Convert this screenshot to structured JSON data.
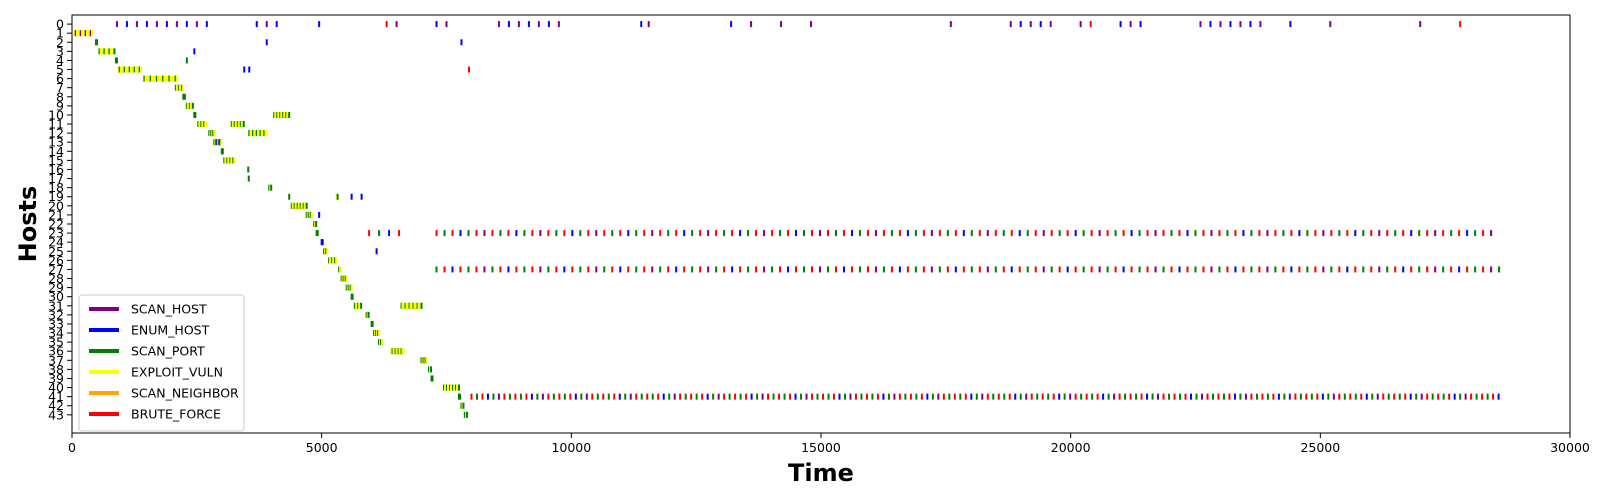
{
  "chart_data": {
    "type": "scatter",
    "xlabel": "Time",
    "ylabel": "Hosts",
    "xlim": [
      0,
      30000
    ],
    "ylim": [
      -1,
      45
    ],
    "y_inverted": true,
    "x_ticks": [
      0,
      5000,
      10000,
      15000,
      20000,
      25000,
      30000
    ],
    "y_ticks": [
      0,
      1,
      2,
      3,
      4,
      5,
      6,
      7,
      8,
      9,
      10,
      11,
      12,
      13,
      14,
      15,
      16,
      17,
      18,
      19,
      20,
      21,
      22,
      23,
      24,
      25,
      26,
      27,
      28,
      29,
      30,
      31,
      32,
      33,
      34,
      35,
      36,
      37,
      38,
      39,
      40,
      41,
      42,
      43
    ],
    "grid": false,
    "legend_position": "bottom-left",
    "actions": [
      {
        "name": "SCAN_HOST",
        "color": "#800080"
      },
      {
        "name": "ENUM_HOST",
        "color": "#0000ff"
      },
      {
        "name": "SCAN_PORT",
        "color": "#008000"
      },
      {
        "name": "EXPLOIT_VULN",
        "color": "#ffff00"
      },
      {
        "name": "SCAN_NEIGHBOR",
        "color": "#ffa500"
      },
      {
        "name": "BRUTE_FORCE",
        "color": "#ff0000"
      }
    ],
    "points": [
      {
        "host": 0,
        "t_start": 900,
        "t_end": 2800,
        "step": 200,
        "actions": [
          "SCAN_HOST",
          "ENUM_HOST"
        ]
      },
      {
        "host": 0,
        "t_start": 3700,
        "t_end": 4200,
        "step": 200,
        "actions": [
          "ENUM_HOST",
          "SCAN_HOST"
        ]
      },
      {
        "host": 0,
        "t_start": 4950,
        "t_end": 4950,
        "step": 200,
        "actions": [
          "ENUM_HOST"
        ]
      },
      {
        "host": 0,
        "t_start": 6300,
        "t_end": 6550,
        "step": 200,
        "actions": [
          "BRUTE_FORCE",
          "SCAN_HOST"
        ]
      },
      {
        "host": 0,
        "t_start": 7300,
        "t_end": 7500,
        "step": 200,
        "actions": [
          "ENUM_HOST",
          "SCAN_HOST"
        ]
      },
      {
        "host": 0,
        "t_start": 8550,
        "t_end": 9800,
        "step": 200,
        "actions": [
          "SCAN_HOST",
          "ENUM_HOST"
        ]
      },
      {
        "host": 0,
        "t_start": 11400,
        "t_end": 11550,
        "step": 150,
        "actions": [
          "ENUM_HOST",
          "SCAN_HOST"
        ]
      },
      {
        "host": 0,
        "t_start": 13200,
        "t_end": 13600,
        "step": 400,
        "actions": [
          "ENUM_HOST",
          "SCAN_HOST"
        ]
      },
      {
        "host": 0,
        "t_start": 14200,
        "t_end": 14800,
        "step": 600,
        "actions": [
          "SCAN_HOST"
        ]
      },
      {
        "host": 0,
        "t_start": 17600,
        "t_end": 17600,
        "step": 200,
        "actions": [
          "SCAN_HOST"
        ]
      },
      {
        "host": 0,
        "t_start": 18800,
        "t_end": 19600,
        "step": 200,
        "actions": [
          "SCAN_HOST",
          "ENUM_HOST"
        ]
      },
      {
        "host": 0,
        "t_start": 20200,
        "t_end": 20400,
        "step": 200,
        "actions": [
          "SCAN_HOST",
          "BRUTE_FORCE"
        ]
      },
      {
        "host": 0,
        "t_start": 21000,
        "t_end": 21400,
        "step": 200,
        "actions": [
          "ENUM_HOST",
          "SCAN_HOST"
        ]
      },
      {
        "host": 0,
        "t_start": 22600,
        "t_end": 23800,
        "step": 200,
        "actions": [
          "SCAN_HOST",
          "ENUM_HOST"
        ]
      },
      {
        "host": 0,
        "t_start": 24400,
        "t_end": 25200,
        "step": 800,
        "actions": [
          "ENUM_HOST",
          "SCAN_HOST"
        ]
      },
      {
        "host": 0,
        "t_start": 27000,
        "t_end": 27800,
        "step": 800,
        "actions": [
          "SCAN_HOST",
          "BRUTE_FORCE"
        ]
      },
      {
        "host": 1,
        "t_start": 50,
        "t_end": 420,
        "step": 25,
        "actions": [
          "EXPLOIT_VULN",
          "SCAN_HOST",
          "EXPLOIT_VULN",
          "EXPLOIT_VULN"
        ]
      },
      {
        "host": 2,
        "t_start": 480,
        "t_end": 500,
        "step": 20,
        "actions": [
          "SCAN_PORT"
        ]
      },
      {
        "host": 2,
        "t_start": 3900,
        "t_end": 3900,
        "step": 20,
        "actions": [
          "ENUM_HOST"
        ]
      },
      {
        "host": 2,
        "t_start": 7800,
        "t_end": 7800,
        "step": 20,
        "actions": [
          "ENUM_HOST"
        ]
      },
      {
        "host": 3,
        "t_start": 550,
        "t_end": 860,
        "step": 25,
        "actions": [
          "SCAN_PORT",
          "EXPLOIT_VULN",
          "EXPLOIT_VULN",
          "EXPLOIT_VULN"
        ]
      },
      {
        "host": 3,
        "t_start": 2450,
        "t_end": 2450,
        "step": 20,
        "actions": [
          "ENUM_HOST"
        ]
      },
      {
        "host": 4,
        "t_start": 880,
        "t_end": 900,
        "step": 20,
        "actions": [
          "SCAN_PORT"
        ]
      },
      {
        "host": 4,
        "t_start": 2300,
        "t_end": 2300,
        "step": 20,
        "actions": [
          "SCAN_PORT"
        ]
      },
      {
        "host": 5,
        "t_start": 930,
        "t_end": 1400,
        "step": 25,
        "actions": [
          "EXPLOIT_VULN",
          "SCAN_PORT",
          "EXPLOIT_VULN",
          "EXPLOIT_VULN"
        ]
      },
      {
        "host": 5,
        "t_start": 3450,
        "t_end": 3550,
        "step": 100,
        "actions": [
          "ENUM_HOST"
        ]
      },
      {
        "host": 5,
        "t_start": 7950,
        "t_end": 7950,
        "step": 20,
        "actions": [
          "BRUTE_FORCE"
        ]
      },
      {
        "host": 6,
        "t_start": 1450,
        "t_end": 2100,
        "step": 25,
        "actions": [
          "SCAN_PORT",
          "EXPLOIT_VULN",
          "EXPLOIT_VULN",
          "EXPLOIT_VULN",
          "EXPLOIT_VULN"
        ]
      },
      {
        "host": 7,
        "t_start": 2080,
        "t_end": 2220,
        "step": 20,
        "actions": [
          "SCAN_PORT",
          "EXPLOIT_VULN",
          "EXPLOIT_VULN"
        ]
      },
      {
        "host": 8,
        "t_start": 2230,
        "t_end": 2260,
        "step": 30,
        "actions": [
          "SCAN_PORT"
        ]
      },
      {
        "host": 9,
        "t_start": 2300,
        "t_end": 2430,
        "step": 20,
        "actions": [
          "SCAN_PORT",
          "EXPLOIT_VULN",
          "EXPLOIT_VULN"
        ]
      },
      {
        "host": 10,
        "t_start": 2450,
        "t_end": 2470,
        "step": 20,
        "actions": [
          "SCAN_PORT"
        ]
      },
      {
        "host": 10,
        "t_start": 4050,
        "t_end": 4350,
        "step": 20,
        "actions": [
          "SCAN_PORT",
          "EXPLOIT_VULN",
          "EXPLOIT_VULN"
        ]
      },
      {
        "host": 11,
        "t_start": 2530,
        "t_end": 2700,
        "step": 20,
        "actions": [
          "SCAN_PORT",
          "EXPLOIT_VULN",
          "EXPLOIT_VULN"
        ]
      },
      {
        "host": 11,
        "t_start": 3200,
        "t_end": 3450,
        "step": 20,
        "actions": [
          "SCAN_PORT",
          "EXPLOIT_VULN",
          "EXPLOIT_VULN"
        ]
      },
      {
        "host": 12,
        "t_start": 2750,
        "t_end": 2850,
        "step": 20,
        "actions": [
          "SCAN_PORT",
          "EXPLOIT_VULN"
        ]
      },
      {
        "host": 12,
        "t_start": 3550,
        "t_end": 3900,
        "step": 25,
        "actions": [
          "SCAN_PORT",
          "EXPLOIT_VULN",
          "EXPLOIT_VULN"
        ]
      },
      {
        "host": 13,
        "t_start": 2850,
        "t_end": 3000,
        "step": 20,
        "actions": [
          "SCAN_PORT",
          "EXPLOIT_VULN",
          "ENUM_HOST"
        ]
      },
      {
        "host": 14,
        "t_start": 3000,
        "t_end": 3020,
        "step": 20,
        "actions": [
          "SCAN_PORT"
        ]
      },
      {
        "host": 15,
        "t_start": 3050,
        "t_end": 3250,
        "step": 20,
        "actions": [
          "SCAN_PORT",
          "EXPLOIT_VULN",
          "EXPLOIT_VULN"
        ]
      },
      {
        "host": 16,
        "t_start": 3530,
        "t_end": 3530,
        "step": 20,
        "actions": [
          "SCAN_PORT"
        ]
      },
      {
        "host": 17,
        "t_start": 3540,
        "t_end": 3540,
        "step": 20,
        "actions": [
          "SCAN_PORT"
        ]
      },
      {
        "host": 18,
        "t_start": 3950,
        "t_end": 4000,
        "step": 20,
        "actions": [
          "SCAN_PORT",
          "EXPLOIT_VULN"
        ]
      },
      {
        "host": 19,
        "t_start": 4350,
        "t_end": 4360,
        "step": 20,
        "actions": [
          "SCAN_PORT"
        ]
      },
      {
        "host": 19,
        "t_start": 5300,
        "t_end": 5330,
        "step": 20,
        "actions": [
          "EXPLOIT_VULN",
          "SCAN_PORT"
        ]
      },
      {
        "host": 19,
        "t_start": 5600,
        "t_end": 5800,
        "step": 200,
        "actions": [
          "ENUM_HOST"
        ]
      },
      {
        "host": 20,
        "t_start": 4400,
        "t_end": 4700,
        "step": 20,
        "actions": [
          "SCAN_PORT",
          "EXPLOIT_VULN",
          "EXPLOIT_VULN"
        ]
      },
      {
        "host": 21,
        "t_start": 4700,
        "t_end": 4800,
        "step": 20,
        "actions": [
          "SCAN_PORT",
          "EXPLOIT_VULN"
        ]
      },
      {
        "host": 21,
        "t_start": 4950,
        "t_end": 4950,
        "step": 20,
        "actions": [
          "ENUM_HOST"
        ]
      },
      {
        "host": 22,
        "t_start": 4850,
        "t_end": 4900,
        "step": 20,
        "actions": [
          "SCAN_PORT",
          "EXPLOIT_VULN"
        ]
      },
      {
        "host": 23,
        "t_start": 4900,
        "t_end": 4920,
        "step": 20,
        "actions": [
          "SCAN_PORT"
        ]
      },
      {
        "host": 23,
        "t_start": 5950,
        "t_end": 6550,
        "step": 200,
        "actions": [
          "BRUTE_FORCE",
          "SCAN_PORT",
          "ENUM_HOST",
          "BRUTE_FORCE"
        ]
      },
      {
        "host": 23,
        "t_start": 7300,
        "t_end": 28500,
        "step": 160,
        "actions": [
          "BRUTE_FORCE",
          "SCAN_PORT",
          "BRUTE_FORCE",
          "ENUM_HOST",
          "SCAN_PORT",
          "BRUTE_FORCE",
          "SCAN_HOST"
        ]
      },
      {
        "host": 24,
        "t_start": 5000,
        "t_end": 5020,
        "step": 20,
        "actions": [
          "ENUM_HOST"
        ]
      },
      {
        "host": 25,
        "t_start": 5050,
        "t_end": 5120,
        "step": 20,
        "actions": [
          "SCAN_PORT",
          "EXPLOIT_VULN"
        ]
      },
      {
        "host": 25,
        "t_start": 6100,
        "t_end": 6100,
        "step": 20,
        "actions": [
          "ENUM_HOST"
        ]
      },
      {
        "host": 26,
        "t_start": 5150,
        "t_end": 5300,
        "step": 20,
        "actions": [
          "SCAN_PORT",
          "EXPLOIT_VULN",
          "EXPLOIT_VULN"
        ]
      },
      {
        "host": 27,
        "t_start": 5350,
        "t_end": 5380,
        "step": 20,
        "actions": [
          "SCAN_PORT",
          "EXPLOIT_VULN"
        ]
      },
      {
        "host": 27,
        "t_start": 7300,
        "t_end": 28600,
        "step": 160,
        "actions": [
          "SCAN_PORT",
          "BRUTE_FORCE",
          "ENUM_HOST",
          "BRUTE_FORCE",
          "SCAN_PORT",
          "BRUTE_FORCE",
          "SCAN_HOST"
        ]
      },
      {
        "host": 28,
        "t_start": 5400,
        "t_end": 5500,
        "step": 20,
        "actions": [
          "SCAN_PORT",
          "EXPLOIT_VULN"
        ]
      },
      {
        "host": 29,
        "t_start": 5500,
        "t_end": 5600,
        "step": 20,
        "actions": [
          "SCAN_PORT",
          "EXPLOIT_VULN"
        ]
      },
      {
        "host": 30,
        "t_start": 5600,
        "t_end": 5620,
        "step": 20,
        "actions": [
          "SCAN_PORT"
        ]
      },
      {
        "host": 31,
        "t_start": 5650,
        "t_end": 5800,
        "step": 20,
        "actions": [
          "EXPLOIT_VULN",
          "SCAN_PORT",
          "EXPLOIT_VULN"
        ]
      },
      {
        "host": 31,
        "t_start": 6600,
        "t_end": 7000,
        "step": 20,
        "actions": [
          "SCAN_PORT",
          "EXPLOIT_VULN",
          "EXPLOIT_VULN",
          "EXPLOIT_VULN"
        ]
      },
      {
        "host": 32,
        "t_start": 5900,
        "t_end": 5950,
        "step": 20,
        "actions": [
          "SCAN_PORT",
          "EXPLOIT_VULN"
        ]
      },
      {
        "host": 33,
        "t_start": 6000,
        "t_end": 6020,
        "step": 20,
        "actions": [
          "SCAN_PORT"
        ]
      },
      {
        "host": 34,
        "t_start": 6050,
        "t_end": 6150,
        "step": 20,
        "actions": [
          "SCAN_PORT",
          "EXPLOIT_VULN"
        ]
      },
      {
        "host": 35,
        "t_start": 6150,
        "t_end": 6220,
        "step": 20,
        "actions": [
          "SCAN_PORT",
          "EXPLOIT_VULN"
        ]
      },
      {
        "host": 36,
        "t_start": 6400,
        "t_end": 6650,
        "step": 20,
        "actions": [
          "EXPLOIT_VULN",
          "SCAN_PORT",
          "EXPLOIT_VULN"
        ]
      },
      {
        "host": 37,
        "t_start": 7000,
        "t_end": 7100,
        "step": 20,
        "actions": [
          "SCAN_PORT",
          "EXPLOIT_VULN"
        ]
      },
      {
        "host": 38,
        "t_start": 7150,
        "t_end": 7200,
        "step": 20,
        "actions": [
          "SCAN_PORT",
          "EXPLOIT_VULN"
        ]
      },
      {
        "host": 39,
        "t_start": 7200,
        "t_end": 7220,
        "step": 20,
        "actions": [
          "SCAN_PORT"
        ]
      },
      {
        "host": 40,
        "t_start": 7450,
        "t_end": 7750,
        "step": 20,
        "actions": [
          "SCAN_PORT",
          "EXPLOIT_VULN",
          "EXPLOIT_VULN"
        ]
      },
      {
        "host": 41,
        "t_start": 7750,
        "t_end": 7780,
        "step": 20,
        "actions": [
          "SCAN_PORT"
        ]
      },
      {
        "host": 41,
        "t_start": 8000,
        "t_end": 28650,
        "step": 110,
        "actions": [
          "BRUTE_FORCE",
          "SCAN_PORT",
          "BRUTE_FORCE",
          "ENUM_HOST",
          "SCAN_PORT",
          "SCAN_HOST",
          "BRUTE_FORCE",
          "SCAN_PORT"
        ]
      },
      {
        "host": 42,
        "t_start": 7800,
        "t_end": 7850,
        "step": 20,
        "actions": [
          "SCAN_PORT",
          "EXPLOIT_VULN"
        ]
      },
      {
        "host": 43,
        "t_start": 7850,
        "t_end": 7920,
        "step": 20,
        "actions": [
          "EXPLOIT_VULN",
          "SCAN_PORT"
        ]
      }
    ]
  }
}
